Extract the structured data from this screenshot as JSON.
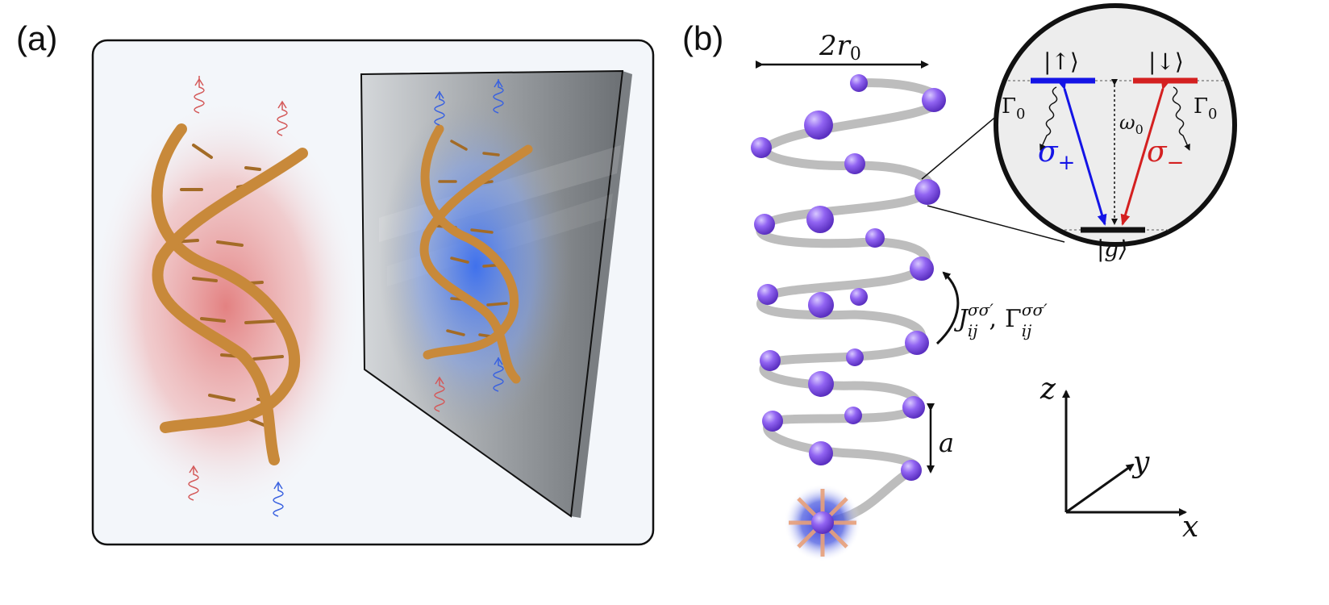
{
  "panels": {
    "a": {
      "label": "(a)"
    },
    "b": {
      "label": "(b)"
    }
  },
  "labels": {
    "width_main": "2r",
    "width_sub": "0",
    "spacing": "a",
    "coupling_J": "J",
    "coupling_Gamma": "Γ",
    "coupling_sup": "σσ′",
    "coupling_sub": "ij",
    "coupling_sep": ",",
    "axis_z": "z",
    "axis_y": "y",
    "axis_x": "x"
  },
  "level_diagram": {
    "state_up": "|↑⟩",
    "state_down": "|↓⟩",
    "state_ground": "|g⟩",
    "decay_left_main": "Γ",
    "decay_left_sub": "0",
    "decay_right_main": "Γ",
    "decay_right_sub": "0",
    "omega_main": "ω",
    "omega_sub": "0",
    "sigma_plus_main": "σ",
    "sigma_plus_sub": "+",
    "sigma_minus_main": "σ",
    "sigma_minus_sub": "−"
  },
  "colors": {
    "sigma_plus": "#1414e6",
    "sigma_minus": "#d42020",
    "atom": "#8b5cf0",
    "helix_tube": "#bdbdbd",
    "dna_strand": "#c8893a",
    "glow_red": "#e88a8a",
    "glow_blue": "#4a78e8",
    "mirror": "#8f9396"
  }
}
